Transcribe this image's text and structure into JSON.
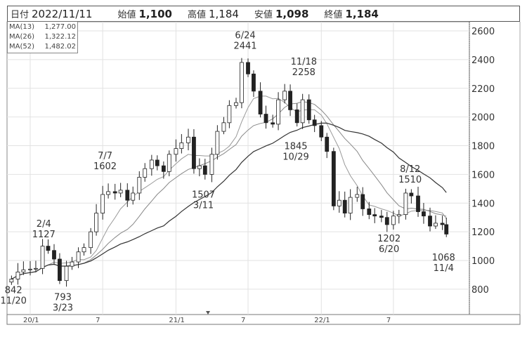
{
  "header": {
    "date_label": "日付",
    "date": "2022/11/11",
    "open_label": "始値",
    "open": "1,100",
    "high_label": "高値",
    "high": "1,184",
    "low_label": "安値",
    "low": "1,098",
    "close_label": "終値",
    "close": "1,184"
  },
  "legend": [
    {
      "name": "MA(13)",
      "value": "1,277.00"
    },
    {
      "name": "MA(26)",
      "value": "1,322.12"
    },
    {
      "name": "MA(52)",
      "value": "1,482.02"
    }
  ],
  "chart_data": {
    "type": "candlestick",
    "title": "",
    "ylim": [
      600,
      2650
    ],
    "y_ticks": [
      800,
      1000,
      1200,
      1400,
      1600,
      1800,
      2000,
      2200,
      2400,
      2600
    ],
    "x_ticks": [
      {
        "date": "2020-01-01",
        "label": "20/1"
      },
      {
        "date": "2020-07-01",
        "label": "7"
      },
      {
        "date": "2021-01-01",
        "label": "21/1"
      },
      {
        "date": "2021-07-01",
        "label": "7"
      },
      {
        "date": "2022-01-01",
        "label": "22/1"
      },
      {
        "date": "2022-07-01",
        "label": "7"
      }
    ],
    "grid": true,
    "up_color": "#ffffff",
    "down_color": "#222222",
    "ma_colors": {
      "MA(13)": "#999999",
      "MA(26)": "#888888",
      "MA(52)": "#333333"
    },
    "closes": [
      [
        "2019-11-15",
        870
      ],
      [
        "2019-12-01",
        920
      ],
      [
        "2019-12-15",
        935
      ],
      [
        "2020-01-01",
        940
      ],
      [
        "2020-01-15",
        945
      ],
      [
        "2020-02-01",
        1100
      ],
      [
        "2020-02-15",
        1070
      ],
      [
        "2020-03-01",
        1010
      ],
      [
        "2020-03-15",
        860
      ],
      [
        "2020-04-01",
        960
      ],
      [
        "2020-04-15",
        990
      ],
      [
        "2020-05-01",
        1060
      ],
      [
        "2020-05-15",
        1090
      ],
      [
        "2020-06-01",
        1200
      ],
      [
        "2020-06-15",
        1330
      ],
      [
        "2020-07-01",
        1460
      ],
      [
        "2020-07-15",
        1480
      ],
      [
        "2020-08-01",
        1470
      ],
      [
        "2020-08-15",
        1490
      ],
      [
        "2020-09-01",
        1420
      ],
      [
        "2020-09-15",
        1470
      ],
      [
        "2020-10-01",
        1580
      ],
      [
        "2020-10-15",
        1640
      ],
      [
        "2020-11-01",
        1700
      ],
      [
        "2020-11-15",
        1660
      ],
      [
        "2020-12-01",
        1620
      ],
      [
        "2020-12-15",
        1740
      ],
      [
        "2021-01-01",
        1780
      ],
      [
        "2021-01-15",
        1820
      ],
      [
        "2021-02-01",
        1860
      ],
      [
        "2021-02-15",
        1640
      ],
      [
        "2021-03-01",
        1660
      ],
      [
        "2021-03-15",
        1600
      ],
      [
        "2021-04-01",
        1740
      ],
      [
        "2021-04-15",
        1900
      ],
      [
        "2021-05-01",
        1960
      ],
      [
        "2021-05-15",
        2080
      ],
      [
        "2021-06-01",
        2100
      ],
      [
        "2021-06-15",
        2380
      ],
      [
        "2021-07-01",
        2300
      ],
      [
        "2021-07-15",
        2180
      ],
      [
        "2021-08-01",
        2020
      ],
      [
        "2021-08-15",
        1960
      ],
      [
        "2021-09-01",
        1950
      ],
      [
        "2021-09-15",
        2120
      ],
      [
        "2021-10-01",
        2180
      ],
      [
        "2021-10-15",
        2050
      ],
      [
        "2021-11-01",
        1960
      ],
      [
        "2021-11-15",
        2120
      ],
      [
        "2021-12-01",
        1980
      ],
      [
        "2021-12-15",
        1940
      ],
      [
        "2022-01-01",
        1860
      ],
      [
        "2022-01-15",
        1760
      ],
      [
        "2022-02-01",
        1380
      ],
      [
        "2022-02-15",
        1420
      ],
      [
        "2022-03-01",
        1330
      ],
      [
        "2022-03-15",
        1440
      ],
      [
        "2022-04-01",
        1460
      ],
      [
        "2022-04-15",
        1360
      ],
      [
        "2022-05-01",
        1320
      ],
      [
        "2022-05-15",
        1310
      ],
      [
        "2022-06-01",
        1300
      ],
      [
        "2022-06-15",
        1250
      ],
      [
        "2022-07-01",
        1310
      ],
      [
        "2022-07-15",
        1320
      ],
      [
        "2022-08-01",
        1470
      ],
      [
        "2022-08-15",
        1450
      ],
      [
        "2022-09-01",
        1340
      ],
      [
        "2022-09-15",
        1310
      ],
      [
        "2022-10-01",
        1240
      ],
      [
        "2022-10-15",
        1260
      ],
      [
        "2022-11-01",
        1250
      ],
      [
        "2022-11-11",
        1184
      ]
    ],
    "annotations": [
      {
        "date": "2019-11-20",
        "value": 842,
        "text": [
          "842",
          "11/20"
        ],
        "pos": "below"
      },
      {
        "date": "2020-02-04",
        "value": 1127,
        "text": [
          "2/4",
          "1127"
        ],
        "pos": "above"
      },
      {
        "date": "2020-03-23",
        "value": 793,
        "text": [
          "793",
          "3/23"
        ],
        "pos": "below"
      },
      {
        "date": "2020-07-07",
        "value": 1602,
        "text": [
          "7/7",
          "1602"
        ],
        "pos": "above"
      },
      {
        "date": "2021-03-11",
        "value": 1507,
        "text": [
          "1507",
          "3/11"
        ],
        "pos": "below"
      },
      {
        "date": "2021-06-24",
        "value": 2441,
        "text": [
          "6/24",
          "2441"
        ],
        "pos": "above"
      },
      {
        "date": "2021-10-29",
        "value": 1845,
        "text": [
          "1845",
          "10/29"
        ],
        "pos": "below"
      },
      {
        "date": "2021-11-18",
        "value": 2258,
        "text": [
          "11/18",
          "2258"
        ],
        "pos": "above"
      },
      {
        "date": "2022-06-20",
        "value": 1202,
        "text": [
          "1202",
          "6/20"
        ],
        "pos": "below"
      },
      {
        "date": "2022-08-12",
        "value": 1510,
        "text": [
          "8/12",
          "1510"
        ],
        "pos": "above"
      },
      {
        "date": "2022-11-04",
        "value": 1068,
        "text": [
          "1068",
          "11/4"
        ],
        "pos": "below"
      }
    ]
  }
}
